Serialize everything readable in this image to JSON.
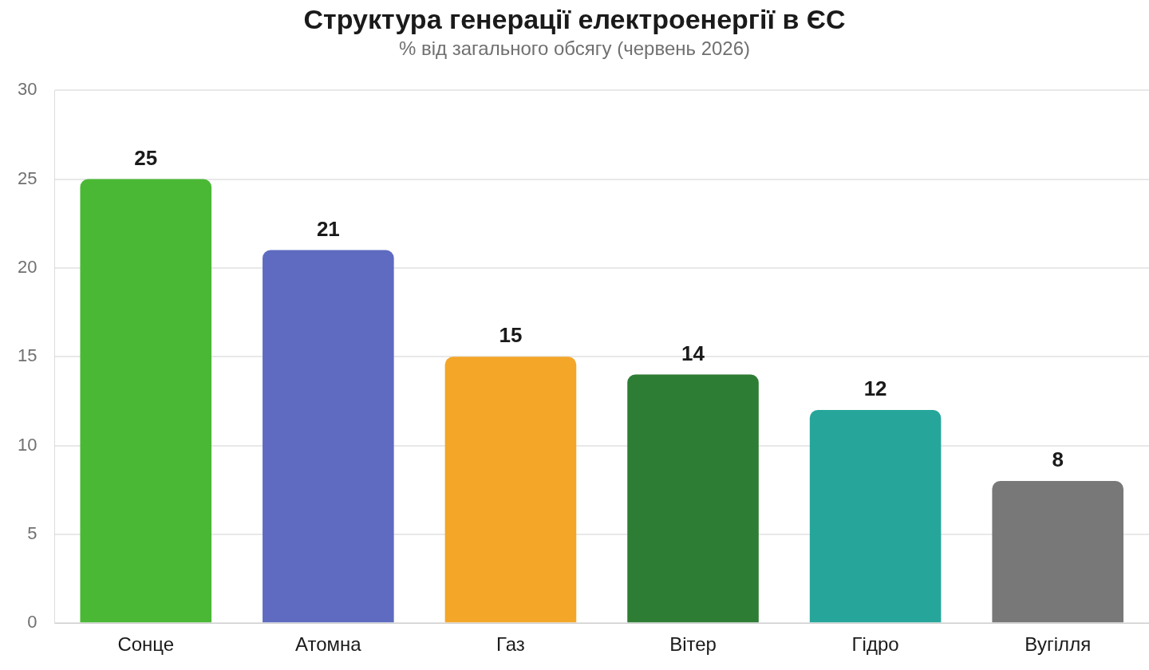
{
  "chart_data": {
    "type": "bar",
    "title": "Структура генерації електроенергії в ЄС",
    "subtitle": "% від загального обсягу (червень 2026)",
    "categories": [
      "Сонце",
      "Атомна",
      "Газ",
      "Вітер",
      "Гідро",
      "Вугілля"
    ],
    "values": [
      25,
      21,
      15,
      14,
      12,
      8
    ],
    "colors": [
      "#4ab835",
      "#5e6bc0",
      "#f4a628",
      "#2e7d34",
      "#26a69a",
      "#787878"
    ],
    "ylim": [
      0,
      30
    ],
    "yticks": [
      0,
      5,
      10,
      15,
      20,
      25,
      30
    ],
    "grid": "y",
    "data_labels": true,
    "legend": false
  }
}
